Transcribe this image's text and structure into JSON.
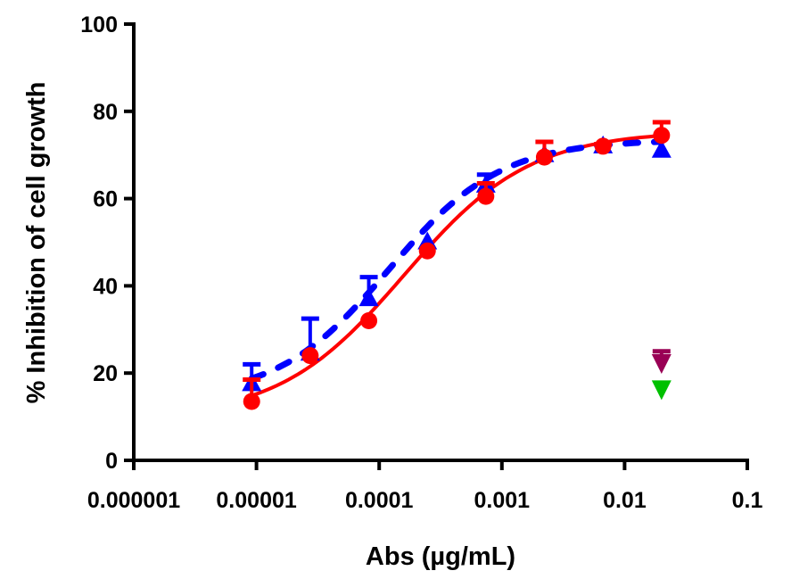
{
  "chart_data": {
    "type": "scatter",
    "title": "",
    "xlabel": "Abs (µg/mL)",
    "ylabel": "% Inhibition of cell growth",
    "xscale": "log",
    "xlim": [
      1e-06,
      0.1
    ],
    "ylim": [
      0,
      100
    ],
    "xticks": [
      "0.000001",
      "0.00001",
      "0.0001",
      "0.001",
      "0.01",
      "0.1"
    ],
    "yticks": [
      "0",
      "20",
      "40",
      "60",
      "80",
      "100"
    ],
    "grid": false,
    "legend": "none",
    "series": [
      {
        "color": "#ff0000",
        "marker": "circle",
        "fit_line": "solid",
        "x": [
          9.14e-06,
          2.74e-05,
          8.23e-05,
          0.000247,
          0.00074,
          0.00222,
          0.00667,
          0.02
        ],
        "y": [
          13.5,
          24,
          32,
          48,
          60.5,
          69.5,
          72,
          74.5
        ],
        "err_upper": [
          18.5,
          null,
          null,
          null,
          63.5,
          73,
          72.5,
          77.5
        ]
      },
      {
        "color": "#0000ff",
        "marker": "triangle-up",
        "fit_line": "dashed",
        "x": [
          9.14e-06,
          2.74e-05,
          8.23e-05,
          0.000247,
          0.00074,
          0.00222,
          0.00667,
          0.02
        ],
        "y": [
          17.5,
          24.5,
          37,
          50,
          63,
          70,
          72,
          71
        ],
        "err_upper": [
          22,
          32.5,
          42,
          null,
          65.5,
          73,
          null,
          null
        ]
      },
      {
        "color": "#990055",
        "marker": "triangle-down",
        "fit_line": "none",
        "x": [
          0.02
        ],
        "y": [
          22.5
        ],
        "err_upper": [
          25
        ]
      },
      {
        "color": "#00c000",
        "marker": "triangle-down",
        "fit_line": "none",
        "x": [
          0.02
        ],
        "y": [
          16.5
        ],
        "err_upper": [
          null
        ]
      }
    ]
  }
}
